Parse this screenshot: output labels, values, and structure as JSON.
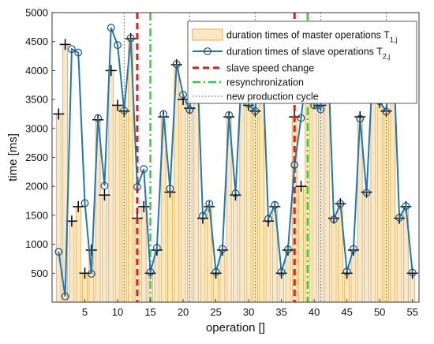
{
  "chart_data": {
    "type": "bar",
    "xlabel": "operation []",
    "ylabel": "time [ms]",
    "xlim": [
      0,
      56
    ],
    "ylim": [
      0,
      5000
    ],
    "xticks": [
      5,
      10,
      15,
      20,
      25,
      30,
      35,
      40,
      45,
      50,
      55
    ],
    "yticks": [
      500,
      1000,
      1500,
      2000,
      2500,
      3000,
      3500,
      4000,
      4500,
      5000
    ],
    "grid": false,
    "legend_position": "top-right",
    "series": [
      {
        "name": "duration times of master operations T",
        "name_subscript": "1,j",
        "kind": "bar",
        "color": "#e8b04a",
        "fill": "#fbe7c4",
        "x": [
          1,
          2,
          3,
          4,
          5,
          6,
          7,
          8,
          9,
          10,
          11,
          12,
          13,
          14,
          15,
          16,
          17,
          18,
          19,
          20,
          21,
          22,
          23,
          24,
          25,
          26,
          27,
          28,
          29,
          30,
          31,
          32,
          33,
          34,
          35,
          36,
          37,
          38,
          39,
          40,
          41,
          42,
          43,
          44,
          45,
          46,
          47,
          48,
          49,
          50,
          51,
          52,
          53,
          54,
          55
        ],
        "values": [
          3250,
          4450,
          1400,
          1650,
          500,
          900,
          3150,
          1850,
          4000,
          3400,
          3300,
          4550,
          1450,
          1650,
          500,
          900,
          3200,
          1900,
          4100,
          3500,
          3350,
          4550,
          1450,
          1650,
          500,
          900,
          3200,
          1850,
          4100,
          3400,
          3300,
          4550,
          1400,
          1650,
          500,
          900,
          3200,
          2000,
          4150,
          3450,
          3400,
          4600,
          1450,
          1700,
          500,
          900,
          3200,
          1900,
          4100,
          3450,
          3300,
          4550,
          1450,
          1650,
          500
        ]
      },
      {
        "name": "duration times of slave operations T",
        "name_subscript": "2,j",
        "kind": "line",
        "color": "#1f77b4",
        "x": [
          1,
          2,
          3,
          4,
          5,
          6,
          7,
          8,
          9,
          10,
          11,
          12,
          13,
          14,
          15,
          16,
          17,
          18,
          19,
          20,
          21,
          22,
          23,
          24,
          25,
          26,
          27,
          28,
          29,
          30,
          31,
          32,
          33,
          34,
          35,
          36,
          37,
          38,
          39,
          40,
          41,
          42,
          43,
          44,
          45,
          46,
          47,
          48,
          49,
          50,
          51,
          52,
          53,
          54,
          55
        ],
        "values": [
          870,
          100,
          4370,
          4310,
          1710,
          490,
          3180,
          2010,
          4740,
          4440,
          3310,
          4560,
          1990,
          2300,
          520,
          940,
          3250,
          1960,
          4110,
          3580,
          3320,
          4560,
          1490,
          1700,
          520,
          920,
          3230,
          1880,
          4120,
          3420,
          3300,
          4500,
          1440,
          1680,
          520,
          910,
          2370,
          3180,
          4130,
          3400,
          3330,
          4570,
          1430,
          1700,
          530,
          920,
          3170,
          1890,
          4160,
          3470,
          3290,
          4560,
          1460,
          1660,
          510
        ]
      },
      {
        "name": "slave speed change",
        "kind": "vline",
        "color": "#d42020",
        "dash": "dashed",
        "x": [
          13,
          37
        ]
      },
      {
        "name": "resynchronization",
        "kind": "vline",
        "color": "#30d030",
        "dash": "dash-dot",
        "x": [
          15,
          39
        ]
      },
      {
        "name": "new production cycle",
        "kind": "vline",
        "color": "#555555",
        "dash": "dotted",
        "x": [
          11,
          21,
          31,
          41,
          51
        ]
      }
    ]
  }
}
